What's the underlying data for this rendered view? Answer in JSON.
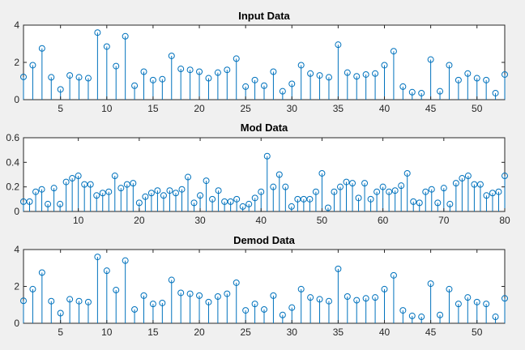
{
  "figure": {
    "background": "#f0f0f0",
    "axes_background": "#ffffff",
    "series_color": "#0072bd",
    "marker": "circle"
  },
  "chart_data": [
    {
      "type": "stem",
      "title": "Input Data",
      "xlim": [
        1,
        53
      ],
      "ylim": [
        0,
        4
      ],
      "xticks": [
        5,
        10,
        15,
        20,
        25,
        30,
        35,
        40,
        45,
        50
      ],
      "yticks": [
        0,
        2,
        4
      ],
      "grid": false,
      "x_start": 1,
      "values": [
        1.22,
        1.85,
        2.75,
        1.2,
        0.55,
        1.3,
        1.2,
        1.15,
        3.6,
        2.85,
        1.8,
        3.4,
        0.75,
        1.5,
        1.05,
        1.1,
        2.35,
        1.65,
        1.6,
        1.5,
        1.15,
        1.45,
        1.6,
        2.2,
        0.7,
        1.05,
        0.75,
        1.5,
        0.45,
        0.85,
        1.85,
        1.4,
        1.3,
        1.2,
        2.95,
        1.45,
        1.25,
        1.35,
        1.4,
        1.85,
        2.6,
        0.7,
        0.4,
        0.35,
        2.15,
        0.45,
        1.85,
        1.05,
        1.4,
        1.15,
        1.05,
        0.35,
        1.35
      ]
    },
    {
      "type": "stem",
      "title": "Mod Data",
      "xlim": [
        1,
        80
      ],
      "ylim": [
        0,
        0.6
      ],
      "xticks": [
        10,
        20,
        30,
        40,
        50,
        60,
        70,
        80
      ],
      "yticks": [
        0,
        0.2,
        0.4,
        0.6
      ],
      "grid": false,
      "x_start": 1,
      "values": [
        0.08,
        0.08,
        0.16,
        0.18,
        0.06,
        0.19,
        0.06,
        0.24,
        0.27,
        0.29,
        0.22,
        0.22,
        0.13,
        0.15,
        0.16,
        0.29,
        0.19,
        0.22,
        0.23,
        0.07,
        0.12,
        0.15,
        0.17,
        0.13,
        0.17,
        0.15,
        0.18,
        0.28,
        0.07,
        0.13,
        0.25,
        0.1,
        0.17,
        0.08,
        0.08,
        0.1,
        0.04,
        0.06,
        0.11,
        0.16,
        0.45,
        0.2,
        0.3,
        0.2,
        0.04,
        0.1,
        0.1,
        0.1,
        0.16,
        0.31,
        0.03,
        0.16,
        0.2,
        0.24,
        0.23,
        0.11,
        0.23,
        0.1,
        0.16,
        0.2,
        0.16,
        0.17,
        0.21,
        0.31,
        0.08,
        0.07,
        0.16,
        0.18,
        0.07,
        0.19,
        0.06,
        0.23,
        0.27,
        0.29,
        0.22,
        0.22,
        0.13,
        0.15,
        0.16,
        0.29
      ]
    },
    {
      "type": "stem",
      "title": "Demod Data",
      "xlim": [
        1,
        53
      ],
      "ylim": [
        0,
        4
      ],
      "xticks": [
        5,
        10,
        15,
        20,
        25,
        30,
        35,
        40,
        45,
        50
      ],
      "yticks": [
        0,
        2,
        4
      ],
      "grid": false,
      "x_start": 1,
      "values": [
        1.22,
        1.85,
        2.75,
        1.2,
        0.55,
        1.3,
        1.2,
        1.15,
        3.6,
        2.85,
        1.8,
        3.4,
        0.75,
        1.5,
        1.05,
        1.1,
        2.35,
        1.65,
        1.6,
        1.5,
        1.15,
        1.45,
        1.6,
        2.2,
        0.7,
        1.05,
        0.75,
        1.5,
        0.45,
        0.85,
        1.85,
        1.4,
        1.3,
        1.2,
        2.95,
        1.45,
        1.25,
        1.35,
        1.4,
        1.85,
        2.6,
        0.7,
        0.4,
        0.35,
        2.15,
        0.45,
        1.85,
        1.05,
        1.4,
        1.15,
        1.05,
        0.35,
        1.35
      ]
    }
  ]
}
